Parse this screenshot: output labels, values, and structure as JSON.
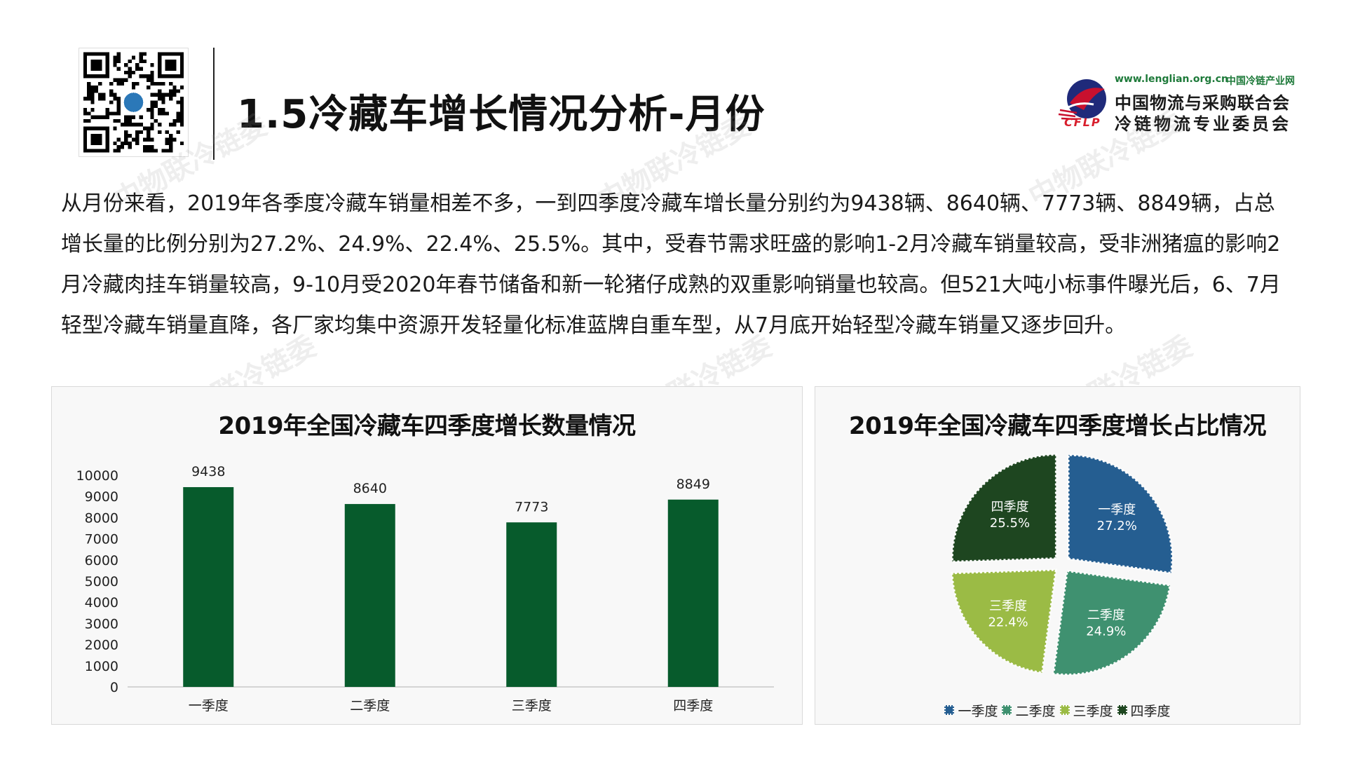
{
  "header": {
    "title": "1.5冷藏车增长情况分析-月份"
  },
  "logo": {
    "url": "www.lenglian.org.cn",
    "site": "中国冷链产业网",
    "org_line1": "中国物流与采购联合会",
    "org_line2": "冷链物流专业委员会",
    "abbr": "CFLP"
  },
  "watermark": "中物联冷链委",
  "body_text": "从月份来看，2019年各季度冷藏车销量相差不多，一到四季度冷藏车增长量分别约为9438辆、8640辆、7773辆、8849辆，占总增长量的比例分别为27.2%、24.9%、22.4%、25.5%。其中，受春节需求旺盛的影响1-2月冷藏车销量较高，受非洲猪瘟的影响2月冷藏肉挂车销量较高，9-10月受2020年春节储备和新一轮猪仔成熟的双重影响销量也较高。但521大吨小标事件曝光后，6、7月轻型冷藏车销量直降，各厂家均集中资源开发轻量化标准蓝牌自重车型，从7月底开始轻型冷藏车销量又逐步回升。",
  "colors": {
    "bar": "#075b2c",
    "q1": "#255e91",
    "q2": "#3f9170",
    "q3": "#9bbb45",
    "q4": "#1e4620"
  },
  "chart_data": [
    {
      "type": "bar",
      "title": "2019年全国冷藏车四季度增长数量情况",
      "categories": [
        "一季度",
        "二季度",
        "三季度",
        "四季度"
      ],
      "values": [
        9438,
        8640,
        7773,
        8849
      ],
      "ylim": [
        0,
        10000
      ],
      "yticks": [
        0,
        1000,
        2000,
        3000,
        4000,
        5000,
        6000,
        7000,
        8000,
        9000,
        10000
      ],
      "data_labels": true,
      "grid": false
    },
    {
      "type": "pie",
      "title": "2019年全国冷藏车四季度增长占比情况",
      "labels": [
        "一季度",
        "二季度",
        "三季度",
        "四季度"
      ],
      "values": [
        27.2,
        24.9,
        22.4,
        25.5
      ],
      "value_labels": [
        "27.2%",
        "24.9%",
        "22.4%",
        "25.5%"
      ],
      "exploded": true,
      "legend": "bottom"
    }
  ]
}
